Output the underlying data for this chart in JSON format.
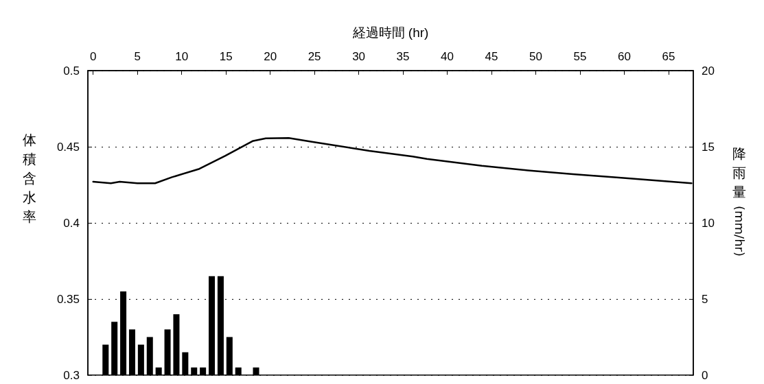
{
  "chart_data": {
    "type": "line",
    "xlabel": "経過時間 (hr)",
    "ylabel": "体積含水率",
    "y2label": "降雨量 (mm/hr)",
    "xlim": [
      -0.6,
      67.8
    ],
    "xticks": [
      0,
      5,
      10,
      15,
      20,
      25,
      30,
      35,
      40,
      45,
      50,
      55,
      60,
      65
    ],
    "ylim": [
      0.3,
      0.5
    ],
    "yticks": [
      0.3,
      0.35,
      0.4,
      0.45,
      0.5
    ],
    "y2lim": [
      0,
      20
    ],
    "y2ticks": [
      0,
      5,
      10,
      15,
      20
    ],
    "grid": "y",
    "marker": "none",
    "line_style": "solid",
    "series": [
      {
        "type": "bar",
        "axis": "y2",
        "color": "#000000",
        "x": [
          1.4,
          2.4,
          3.4,
          4.4,
          5.4,
          6.4,
          7.4,
          8.4,
          9.4,
          10.4,
          11.4,
          12.4,
          13.4,
          14.4,
          15.4,
          16.4,
          17.4,
          18.4
        ],
        "values": [
          2,
          3.5,
          5.5,
          3,
          2,
          2.5,
          0.5,
          3,
          4,
          1.5,
          0.5,
          0.5,
          6.5,
          6.5,
          2.5,
          0.5,
          0,
          0.5
        ]
      },
      {
        "color": "#000000",
        "x": [
          0,
          2,
          3,
          5,
          7,
          8.9,
          12,
          14.9,
          18,
          19.5,
          22.1,
          24.7,
          31.2,
          36.1,
          37.7,
          43.9,
          49.1,
          54.2,
          59.4,
          67.6
        ],
        "values": [
          0.427,
          0.426,
          0.427,
          0.426,
          0.426,
          0.43,
          0.4355,
          0.444,
          0.4537,
          0.4555,
          0.4557,
          0.4533,
          0.4473,
          0.4436,
          0.442,
          0.4375,
          0.4345,
          0.432,
          0.4297,
          0.426
        ]
      }
    ]
  }
}
